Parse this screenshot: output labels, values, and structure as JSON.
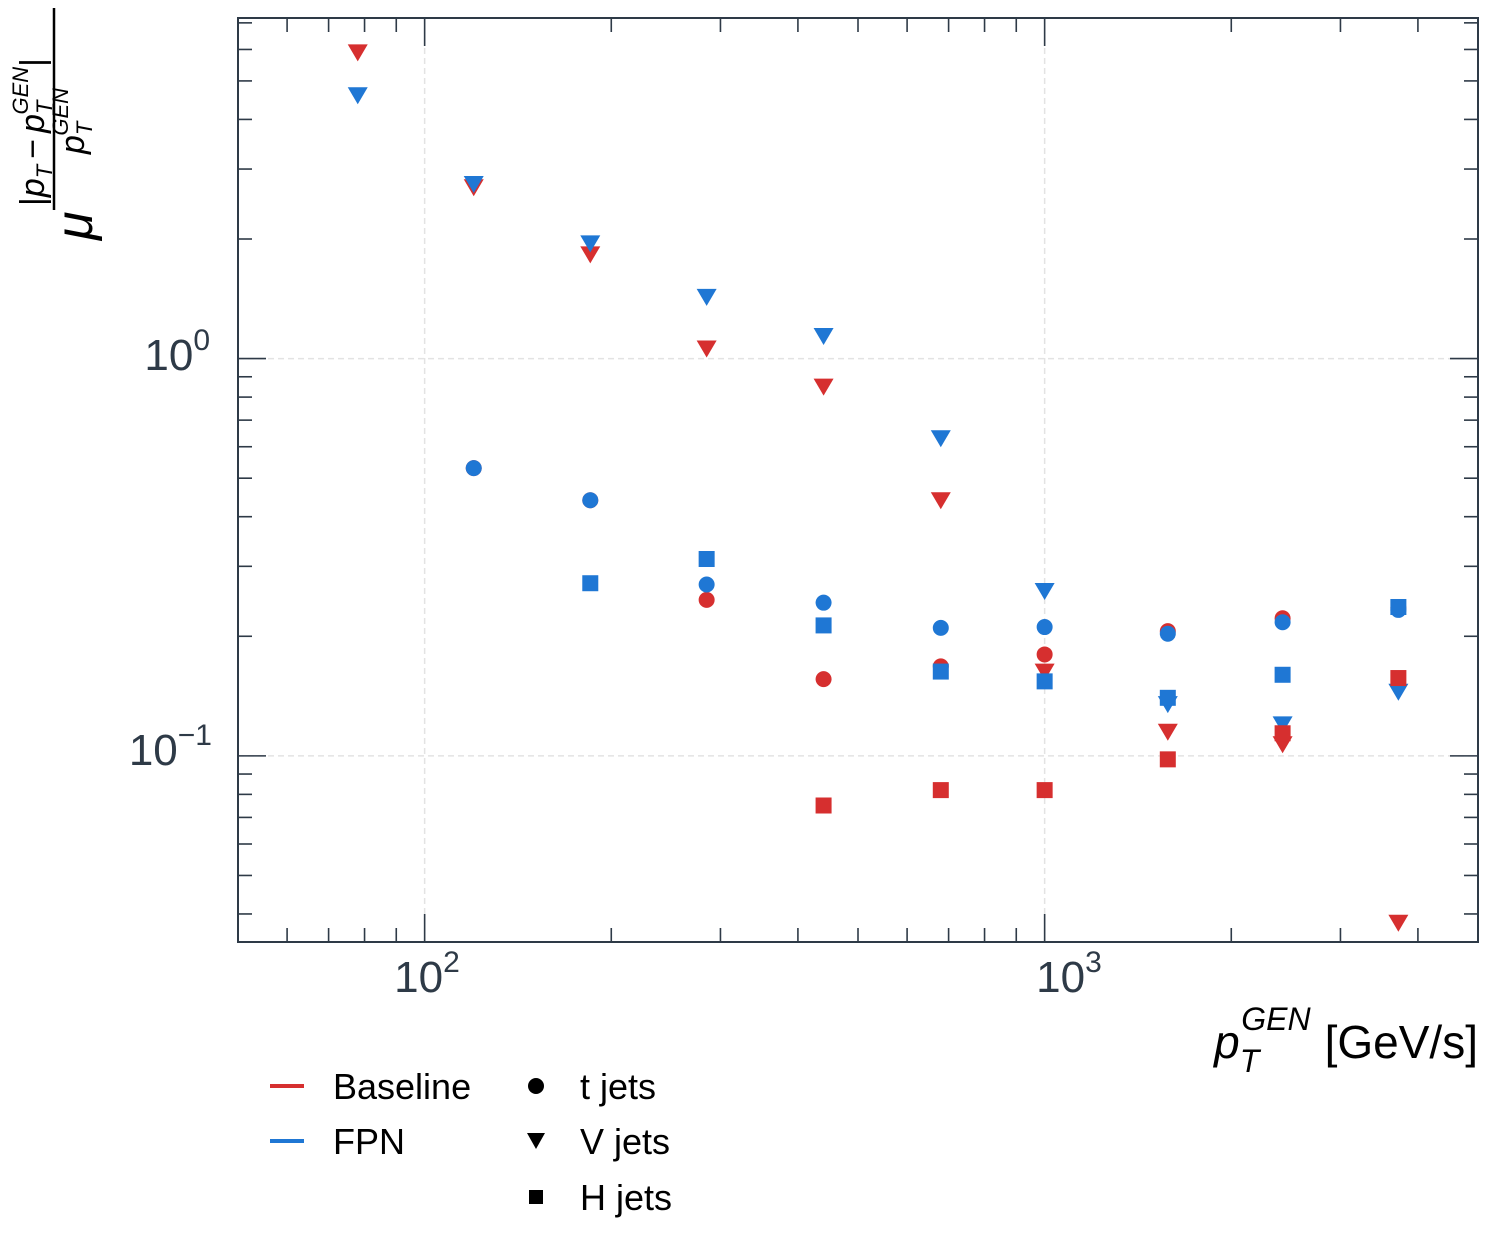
{
  "chart_data": {
    "type": "scatter",
    "xscale": "log",
    "yscale": "log",
    "xlim": [
      50,
      5000
    ],
    "ylim": [
      0.034,
      7.2
    ],
    "grid": true,
    "xticks": [
      {
        "base": "10",
        "exp": "2",
        "value": 100
      },
      {
        "base": "10",
        "exp": "3",
        "value": 1000
      }
    ],
    "yticks": [
      {
        "base": "10",
        "exp": "0",
        "value": 1
      },
      {
        "base": "10",
        "exp": "−1",
        "value": 0.1
      }
    ],
    "xlabel": {
      "sym": "p",
      "sub": "T",
      "sup": "GEN",
      "unit": "[GeV/s]"
    },
    "ylabel": {
      "mu": "μ",
      "num": {
        "open": "|",
        "p1": "p",
        "sub1": "T",
        "minus": "−",
        "p2": "p",
        "sub2": "T",
        "sup2": "GEN",
        "close": "|"
      },
      "den": {
        "p": "p",
        "sub": "T",
        "sup": "GEN"
      }
    },
    "legend": {
      "placement": "below-left",
      "models": [
        {
          "name": "Baseline",
          "color": "#d62f2f"
        },
        {
          "name": "FPN",
          "color": "#1f77d4"
        }
      ],
      "markers": [
        {
          "name": "t jets",
          "shape": "circle"
        },
        {
          "name": "V jets",
          "shape": "triangle-down"
        },
        {
          "name": "H jets",
          "shape": "square"
        }
      ]
    },
    "series": [
      {
        "model": "Baseline",
        "jet": "t",
        "shape": "circle",
        "color": "#d62f2f",
        "x": [
          120,
          185,
          285,
          440,
          680,
          1000,
          1580,
          2420,
          3720
        ],
        "y": [
          0.53,
          0.44,
          0.247,
          0.156,
          0.168,
          0.18,
          0.206,
          0.222,
          0.236
        ]
      },
      {
        "model": "FPN",
        "jet": "t",
        "shape": "circle",
        "color": "#1f77d4",
        "x": [
          120,
          185,
          285,
          440,
          680,
          1000,
          1580,
          2420,
          3720
        ],
        "y": [
          0.53,
          0.44,
          0.27,
          0.243,
          0.21,
          0.211,
          0.203,
          0.217,
          0.233
        ]
      },
      {
        "model": "Baseline",
        "jet": "V",
        "shape": "triangle-down",
        "color": "#d62f2f",
        "x": [
          78,
          120,
          185,
          285,
          440,
          680,
          1000,
          1580,
          2420,
          3720
        ],
        "y": [
          5.9,
          2.7,
          1.83,
          1.06,
          0.85,
          0.44,
          0.163,
          0.115,
          0.107,
          0.038
        ]
      },
      {
        "model": "FPN",
        "jet": "V",
        "shape": "triangle-down",
        "color": "#1f77d4",
        "x": [
          78,
          120,
          185,
          285,
          440,
          680,
          1000,
          1580,
          2420,
          3720
        ],
        "y": [
          4.6,
          2.75,
          1.95,
          1.43,
          1.14,
          0.63,
          0.26,
          0.135,
          0.12,
          0.145
        ]
      },
      {
        "model": "Baseline",
        "jet": "H",
        "shape": "square",
        "color": "#d62f2f",
        "x": [
          440,
          680,
          1000,
          1580,
          2420,
          3720
        ],
        "y": [
          0.075,
          0.082,
          0.082,
          0.098,
          0.114,
          0.157
        ]
      },
      {
        "model": "FPN",
        "jet": "H",
        "shape": "square",
        "color": "#1f77d4",
        "x": [
          185,
          285,
          440,
          680,
          1000,
          1580,
          2420,
          3720
        ],
        "y": [
          0.272,
          0.313,
          0.213,
          0.163,
          0.154,
          0.14,
          0.16,
          0.237
        ]
      }
    ]
  }
}
